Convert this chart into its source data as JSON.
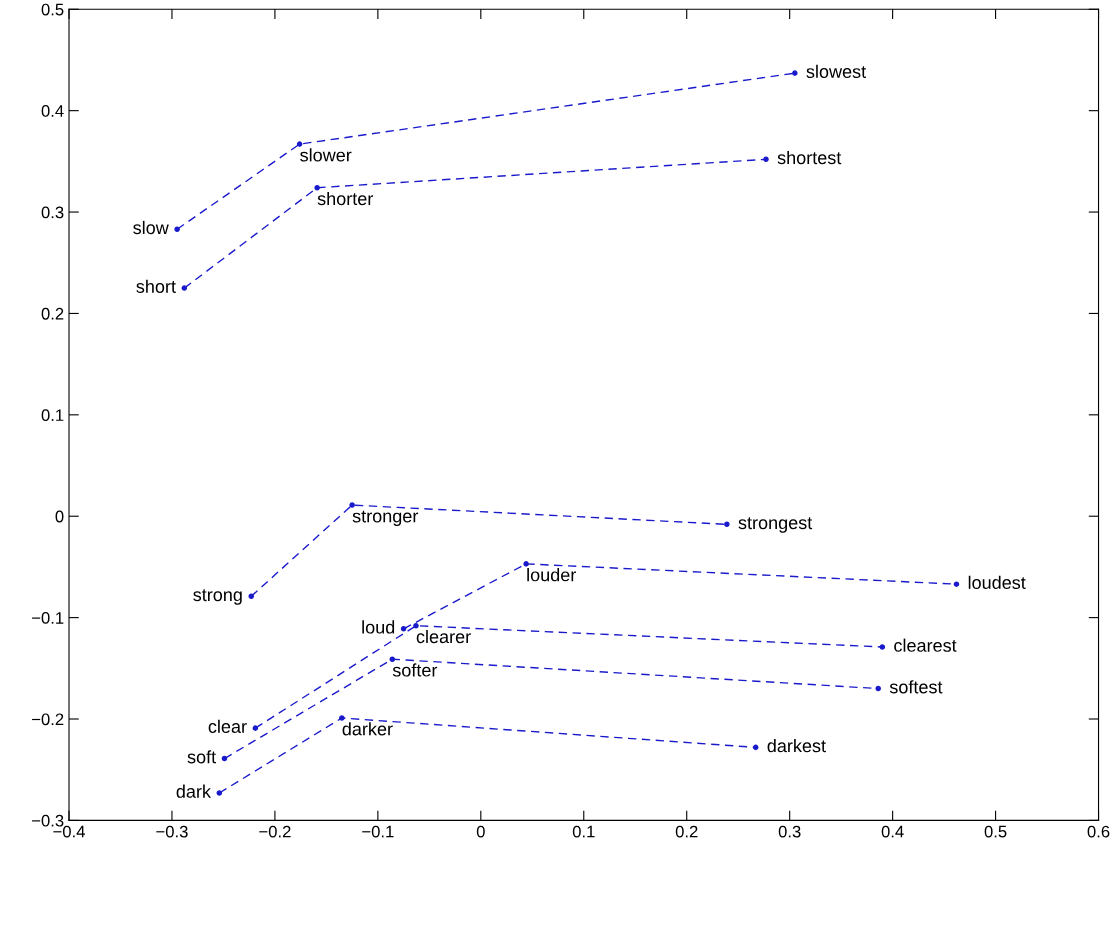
{
  "chart_data": {
    "type": "line",
    "line_style": "dashed",
    "marker": "circle",
    "xlim": [
      -0.4,
      0.6
    ],
    "xticks": [
      -0.4,
      -0.3,
      -0.2,
      -0.1,
      0,
      0.1,
      0.2,
      0.3,
      0.4,
      0.5,
      0.6
    ],
    "ylim": [
      -0.3,
      0.5
    ],
    "yticks": [
      -0.3,
      -0.2,
      -0.1,
      0,
      0.1,
      0.2,
      0.3,
      0.4,
      0.5
    ],
    "grid": false,
    "legend": false,
    "series": [
      {
        "color": "#1a1acc",
        "x": [
          -0.295,
          -0.176,
          0.305
        ],
        "values": [
          0.283,
          0.367,
          0.437
        ]
      },
      {
        "color": "#1a1acc",
        "x": [
          -0.288,
          -0.159,
          0.277
        ],
        "values": [
          0.225,
          0.324,
          0.352
        ]
      },
      {
        "color": "#1a1acc",
        "x": [
          -0.223,
          -0.125,
          0.239
        ],
        "values": [
          -0.079,
          0.011,
          -0.008
        ]
      },
      {
        "color": "#1a1acc",
        "x": [
          -0.075,
          0.044,
          0.462
        ],
        "values": [
          -0.111,
          -0.047,
          -0.067
        ]
      },
      {
        "color": "#1a1acc",
        "x": [
          -0.219,
          -0.063,
          0.39
        ],
        "values": [
          -0.209,
          -0.108,
          -0.129
        ]
      },
      {
        "color": "#1a1acc",
        "x": [
          -0.249,
          -0.086,
          0.386
        ],
        "values": [
          -0.239,
          -0.141,
          -0.17
        ]
      },
      {
        "color": "#1a1acc",
        "x": [
          -0.254,
          -0.135,
          0.267
        ],
        "values": [
          -0.273,
          -0.199,
          -0.228
        ]
      }
    ],
    "annotations": [
      {
        "text": "slow",
        "x": -0.295,
        "y": 0.283
      },
      {
        "text": "slower",
        "x": -0.176,
        "y": 0.367
      },
      {
        "text": "slowest",
        "x": 0.305,
        "y": 0.437
      },
      {
        "text": "short",
        "x": -0.288,
        "y": 0.225
      },
      {
        "text": "shorter",
        "x": -0.159,
        "y": 0.324
      },
      {
        "text": "shortest",
        "x": 0.277,
        "y": 0.352
      },
      {
        "text": "strong",
        "x": -0.223,
        "y": -0.079
      },
      {
        "text": "stronger",
        "x": -0.125,
        "y": 0.011
      },
      {
        "text": "strongest",
        "x": 0.239,
        "y": -0.008
      },
      {
        "text": "loud",
        "x": -0.075,
        "y": -0.111
      },
      {
        "text": "louder",
        "x": 0.044,
        "y": -0.047
      },
      {
        "text": "loudest",
        "x": 0.462,
        "y": -0.067
      },
      {
        "text": "clear",
        "x": -0.219,
        "y": -0.209
      },
      {
        "text": "clearer",
        "x": -0.063,
        "y": -0.108
      },
      {
        "text": "clearest",
        "x": 0.39,
        "y": -0.129
      },
      {
        "text": "soft",
        "x": -0.249,
        "y": -0.239
      },
      {
        "text": "softer",
        "x": -0.086,
        "y": -0.141
      },
      {
        "text": "softest",
        "x": 0.386,
        "y": -0.17
      },
      {
        "text": "dark",
        "x": -0.254,
        "y": -0.273
      },
      {
        "text": "darker",
        "x": -0.135,
        "y": -0.199
      },
      {
        "text": "darkest",
        "x": 0.267,
        "y": -0.228
      }
    ]
  }
}
